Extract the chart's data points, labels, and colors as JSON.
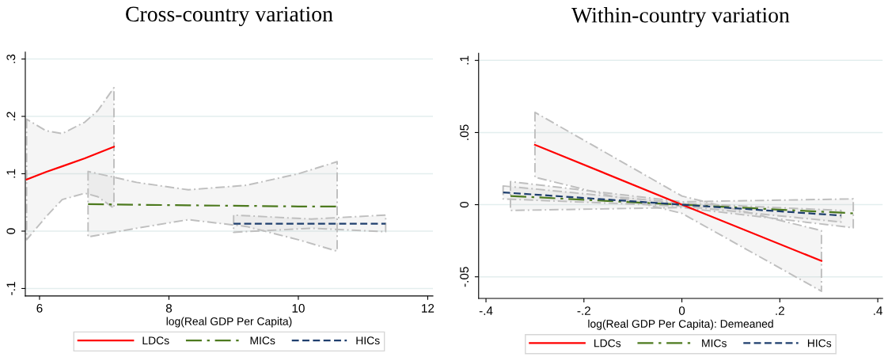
{
  "chart_data": [
    {
      "type": "line",
      "title": "Cross-country variation",
      "xlabel": "log(Real GDP Per Capita)",
      "xlim": [
        5.78,
        12.08
      ],
      "ylim": [
        -0.113,
        0.312
      ],
      "xticks": [
        6,
        8,
        10,
        12
      ],
      "yticks": [
        {
          "value": -0.1,
          "label": "-.1"
        },
        0,
        {
          "value": 0.1,
          "label": ".1"
        },
        {
          "value": 0.2,
          "label": ".2"
        },
        {
          "value": 0.3,
          "label": ".3"
        }
      ],
      "grid": "y",
      "legend": "bottom",
      "series": [
        {
          "name": "LDCs",
          "color": "#ff0000",
          "line_style": "solid",
          "x": [
            5.8,
            6.1,
            6.35,
            6.7,
            6.9,
            7.15
          ],
          "values": [
            0.09,
            0.103,
            0.113,
            0.127,
            0.136,
            0.147
          ],
          "upper": [
            0.195,
            0.175,
            0.17,
            0.19,
            0.21,
            0.25
          ],
          "lower": [
            -0.015,
            0.025,
            0.055,
            0.066,
            0.06,
            0.04
          ]
        },
        {
          "name": "MICs",
          "color": "#4d7a1f",
          "line_style": "dashdot",
          "x": [
            6.75,
            7.5,
            8.3,
            9.2,
            10.0,
            10.6
          ],
          "values": [
            0.047,
            0.046,
            0.045,
            0.044,
            0.043,
            0.043
          ],
          "upper": [
            0.104,
            0.085,
            0.072,
            0.08,
            0.1,
            0.121
          ],
          "lower": [
            -0.01,
            0.005,
            0.02,
            0.008,
            -0.015,
            -0.035
          ]
        },
        {
          "name": "HICs",
          "color": "#1f3f6e",
          "line_style": "dashed",
          "x": [
            9.0,
            10.2,
            11.35
          ],
          "values": [
            0.013,
            0.013,
            0.013
          ],
          "upper": [
            0.028,
            0.021,
            0.028
          ],
          "lower": [
            -0.002,
            0.005,
            -0.001
          ]
        }
      ]
    },
    {
      "type": "line",
      "title": "Within-country variation",
      "xlabel": "log(Real GDP Per Capita): Demeaned",
      "xlim": [
        -0.415,
        0.41
      ],
      "ylim": [
        -0.065,
        0.105
      ],
      "xticks": [
        {
          "value": -0.4,
          "label": "-.4"
        },
        {
          "value": -0.2,
          "label": "-.2"
        },
        0,
        {
          "value": 0.2,
          "label": ".2"
        },
        {
          "value": 0.4,
          "label": ".4"
        }
      ],
      "yticks": [
        {
          "value": -0.05,
          "label": "-.05"
        },
        0,
        {
          "value": 0.05,
          "label": ".05"
        },
        {
          "value": 0.1,
          "label": ".1"
        }
      ],
      "grid": "y",
      "legend": "bottom",
      "series": [
        {
          "name": "LDCs",
          "color": "#ff0000",
          "line_style": "solid",
          "x": [
            -0.3,
            0,
            0.285
          ],
          "values": [
            0.0415,
            0.0,
            -0.039
          ],
          "upper": [
            0.064,
            0.006,
            -0.018
          ],
          "lower": [
            0.019,
            -0.006,
            -0.06
          ]
        },
        {
          "name": "MICs",
          "color": "#4d7a1f",
          "line_style": "dashdot",
          "x": [
            -0.35,
            0,
            0.35
          ],
          "values": [
            0.006,
            0.0,
            -0.006
          ],
          "upper": [
            0.016,
            0.002,
            0.004
          ],
          "lower": [
            -0.004,
            -0.002,
            -0.016
          ]
        },
        {
          "name": "HICs",
          "color": "#1f3f6e",
          "line_style": "dashed",
          "x": [
            -0.365,
            0,
            0.325
          ],
          "values": [
            0.0085,
            0.0,
            -0.0075
          ],
          "upper": [
            0.013,
            0.001,
            -0.004
          ],
          "lower": [
            0.004,
            -0.001,
            -0.012
          ]
        }
      ]
    }
  ]
}
